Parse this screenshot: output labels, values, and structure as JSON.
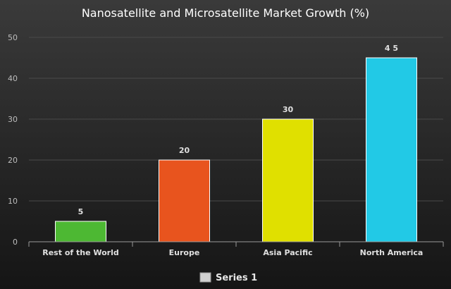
{
  "chart_data": {
    "type": "bar",
    "title": "Nanosatellite and Microsatellite Market Growth (%)",
    "categories": [
      "Rest of the World",
      "Europe",
      "Asia Pacific",
      "North America"
    ],
    "series": [
      {
        "name": "Series 1",
        "values": [
          5,
          20,
          30,
          45
        ]
      }
    ],
    "value_labels": [
      "5",
      "20",
      "30",
      "4 5"
    ],
    "bar_colors": [
      "#4db833",
      "#e8541e",
      "#e0e000",
      "#22c9e6"
    ],
    "ylim": [
      0,
      50
    ],
    "yticks": [
      0,
      10,
      20,
      30,
      40,
      50
    ],
    "grid": true,
    "legend": {
      "position": "bottom-center",
      "swatch_color": "#d0d0d0"
    }
  }
}
